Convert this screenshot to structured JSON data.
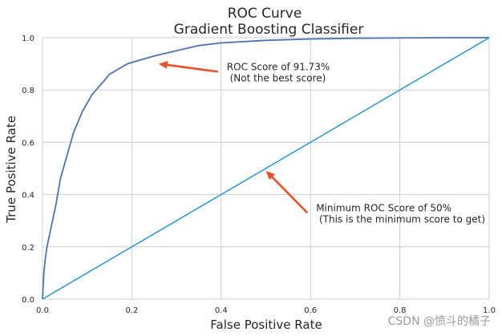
{
  "chart_data": {
    "type": "line",
    "title": [
      "ROC Curve",
      "Gradient Boosting Classifier"
    ],
    "xlabel": "False Positive Rate",
    "ylabel": "True Positive Rate",
    "xlim": [
      0,
      1
    ],
    "ylim": [
      0,
      1
    ],
    "xticks": [
      "0.0",
      "0.2",
      "0.4",
      "0.6",
      "0.8",
      "1.0"
    ],
    "yticks": [
      "0.0",
      "0.2",
      "0.4",
      "0.6",
      "0.8",
      "1.0"
    ],
    "grid": true,
    "colors": {
      "roc": "#4c72b0",
      "baseline": "#1f8fd6",
      "arrow": "#e8512b",
      "grid": "#cccccc"
    },
    "series": [
      {
        "x": [
          0,
          0.003,
          0.006,
          0.01,
          0.015,
          0.02,
          0.03,
          0.04,
          0.05,
          0.06,
          0.07,
          0.08,
          0.09,
          0.1,
          0.11,
          0.12,
          0.13,
          0.14,
          0.15,
          0.17,
          0.19,
          0.21,
          0.25,
          0.3,
          0.35,
          0.4,
          0.5,
          0.6,
          0.7,
          0.8,
          0.9,
          1.0
        ],
        "y": [
          0,
          0.1,
          0.15,
          0.2,
          0.24,
          0.28,
          0.36,
          0.46,
          0.52,
          0.58,
          0.64,
          0.68,
          0.72,
          0.75,
          0.78,
          0.8,
          0.82,
          0.84,
          0.86,
          0.88,
          0.9,
          0.91,
          0.93,
          0.95,
          0.97,
          0.98,
          0.99,
          0.995,
          0.998,
          0.999,
          1.0,
          1.0
        ]
      },
      {
        "x": [
          0,
          1
        ],
        "y": [
          0,
          1
        ]
      }
    ],
    "annotations": [
      {
        "text": [
          "ROC Score of 91.73%",
          " (Not the best score)"
        ],
        "xy": [
          0.26,
          0.9
        ],
        "xytext": [
          0.4,
          0.87
        ]
      },
      {
        "text": [
          "Minimum ROC Score of 50%",
          " (This is the minimum score to get)"
        ],
        "xy": [
          0.5,
          0.49
        ],
        "xytext": [
          0.6,
          0.33
        ]
      }
    ]
  },
  "watermark": "CSDN @愤斗的橘子"
}
